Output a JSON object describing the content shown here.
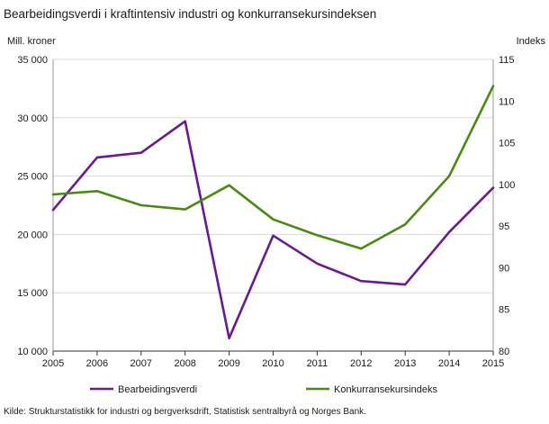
{
  "chart_data": {
    "type": "line",
    "title": "Bearbeidingsverdi i kraftintensiv industri og konkurransekursindeksen",
    "ylabel_left": "Mill. kroner",
    "ylabel_right": "Indeks",
    "source": "Kilde: Strukturstatistikk for industri og bergverksdrift, Statistisk sentralbyrå og Norges Bank.",
    "x": [
      "2005",
      "2006",
      "2007",
      "2008",
      "2009",
      "2010",
      "2011",
      "2012",
      "2013",
      "2014",
      "2015"
    ],
    "y_left": {
      "min": 10000,
      "max": 35000,
      "ticks": [
        10000,
        15000,
        20000,
        25000,
        30000,
        35000
      ],
      "tick_labels": [
        "10 000",
        "15 000",
        "20 000",
        "25 000",
        "30 000",
        "35 000"
      ]
    },
    "y_right": {
      "min": 80,
      "max": 115,
      "ticks": [
        80,
        85,
        90,
        95,
        100,
        105,
        110,
        115
      ],
      "tick_labels": [
        "80",
        "85",
        "90",
        "95",
        "100",
        "105",
        "110",
        "115"
      ]
    },
    "grid": true,
    "legend_position": "bottom",
    "series": [
      {
        "name": "Bearbeidingsverdi",
        "axis": "left",
        "color": "#6a1a8a",
        "values": [
          22100,
          26600,
          27000,
          29700,
          11100,
          19900,
          17500,
          16000,
          15700,
          20200,
          24000
        ]
      },
      {
        "name": "Konkurransekursindeks",
        "axis": "right",
        "color": "#4a8a12",
        "values": [
          98.8,
          99.2,
          97.5,
          97.0,
          99.9,
          95.8,
          93.9,
          92.3,
          95.2,
          101.0,
          111.8
        ]
      }
    ]
  }
}
